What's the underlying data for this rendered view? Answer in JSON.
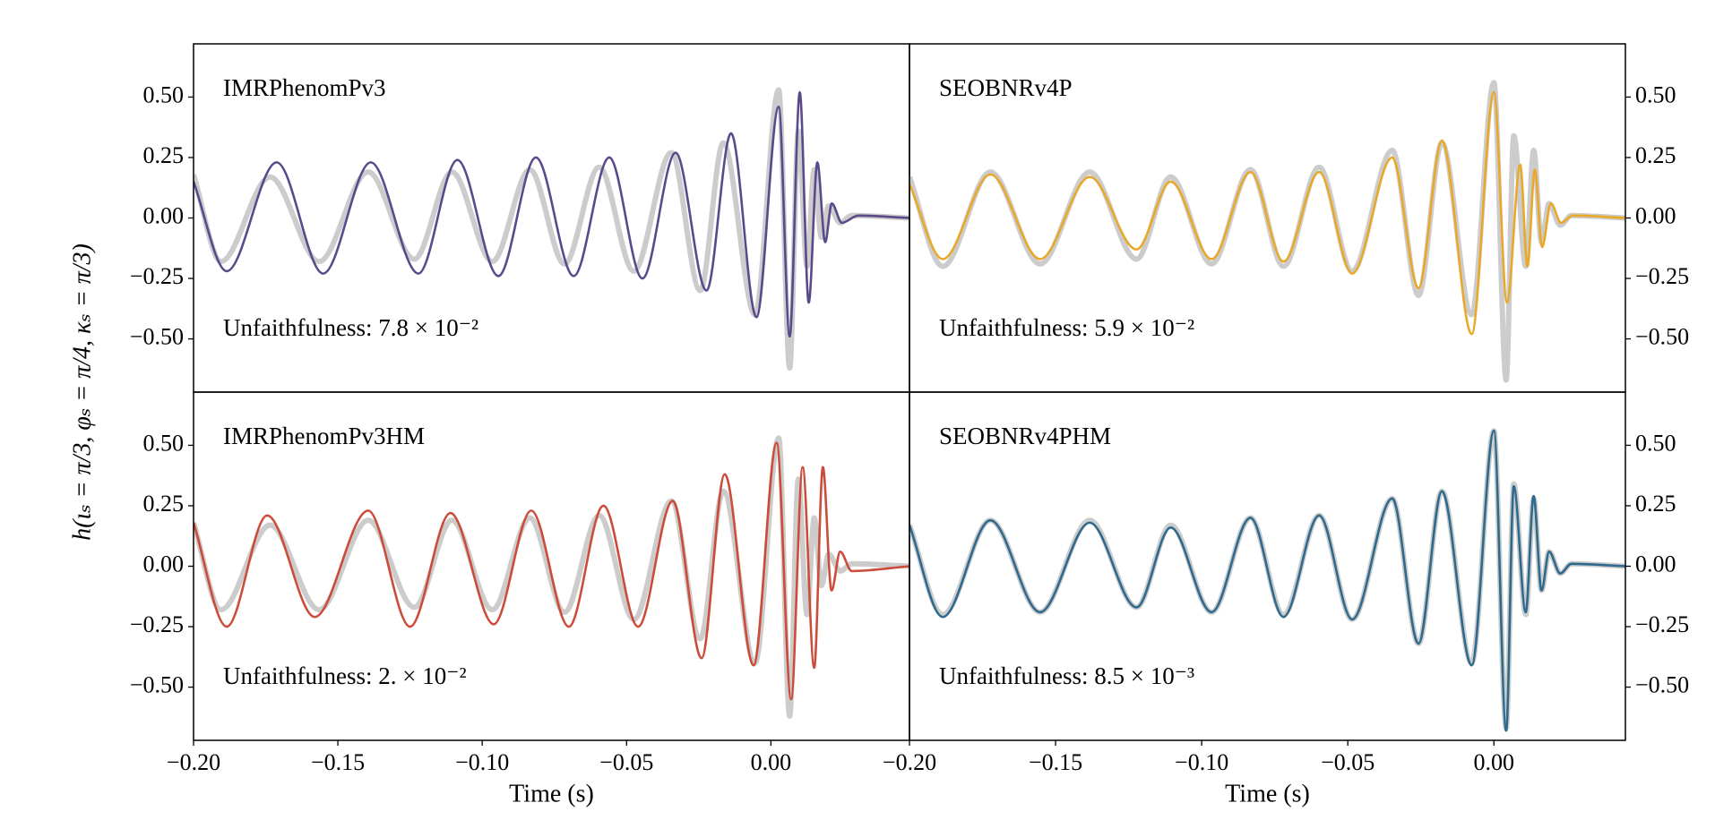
{
  "chart_data": [
    {
      "type": "line",
      "title": "IMRPhenomPv3",
      "annotation": "Unfaithfulness: 7.8 × 10⁻²",
      "ylabel": "h(ιₛ = π/3, φₛ = π/4, κₛ = π/3)",
      "xlim": [
        -0.2,
        0.048
      ],
      "ylim": [
        -0.72,
        0.72
      ],
      "yaxis_side": "left",
      "yticks": [
        {
          "value": -0.5,
          "label": "−0.50"
        },
        {
          "value": -0.25,
          "label": "−0.25"
        },
        {
          "value": 0,
          "label": "0.00"
        },
        {
          "value": 0.25,
          "label": "0.25"
        },
        {
          "value": 0.5,
          "label": "0.50"
        }
      ],
      "series": [
        {
          "color": "#cccccc",
          "x": [
            -0.2,
            -0.1905,
            -0.1735,
            -0.1565,
            -0.1395,
            -0.1235,
            -0.1105,
            -0.0965,
            -0.0835,
            -0.0715,
            -0.0595,
            -0.0475,
            -0.0345,
            -0.0245,
            -0.0165,
            -0.0055,
            0.0027,
            0.0065,
            0.0095,
            0.0125,
            0.015,
            0.0175,
            0.02,
            0.024,
            0.028,
            0.048
          ],
          "values": [
            0.18,
            -0.18,
            0.17,
            -0.18,
            0.19,
            -0.17,
            0.19,
            -0.18,
            0.2,
            -0.19,
            0.21,
            -0.22,
            0.27,
            -0.3,
            0.31,
            -0.4,
            0.53,
            -0.62,
            0.36,
            -0.2,
            0.2,
            -0.08,
            0.05,
            -0.02,
            0.01,
            0
          ]
        },
        {
          "color": "#5b4a8b",
          "x": [
            -0.2,
            -0.1885,
            -0.1712,
            -0.1551,
            -0.1386,
            -0.1221,
            -0.1086,
            -0.0944,
            -0.0814,
            -0.0683,
            -0.056,
            -0.0445,
            -0.033,
            -0.0223,
            -0.0138,
            -0.005,
            0.0027,
            0.0065,
            0.01,
            0.0131,
            0.0161,
            0.0188,
            0.0211,
            0.0246,
            0.0303,
            0.048
          ],
          "values": [
            0.15,
            -0.22,
            0.23,
            -0.23,
            0.23,
            -0.23,
            0.24,
            -0.24,
            0.25,
            -0.24,
            0.25,
            -0.25,
            0.27,
            -0.3,
            0.35,
            -0.41,
            0.46,
            -0.49,
            0.52,
            -0.35,
            0.23,
            -0.1,
            0.06,
            -0.02,
            0.01,
            0
          ]
        }
      ]
    },
    {
      "type": "line",
      "title": "SEOBNRv4P",
      "annotation": "Unfaithfulness: 5.9 × 10⁻²",
      "xlim": [
        -0.2,
        0.045
      ],
      "ylim": [
        -0.72,
        0.72
      ],
      "yaxis_side": "right",
      "yticks": [
        {
          "value": -0.5,
          "label": "−0.50"
        },
        {
          "value": -0.25,
          "label": "−0.25"
        },
        {
          "value": 0,
          "label": "0.00"
        },
        {
          "value": 0.25,
          "label": "0.25"
        },
        {
          "value": 0.5,
          "label": "0.50"
        }
      ],
      "series": [
        {
          "color": "#cccccc",
          "x": [
            -0.2,
            -0.1886,
            -0.1723,
            -0.1553,
            -0.1383,
            -0.1223,
            -0.1106,
            -0.0966,
            -0.0833,
            -0.072,
            -0.0598,
            -0.0485,
            -0.0348,
            -0.0258,
            -0.0178,
            -0.0076,
            0,
            0.0042,
            0.0068,
            0.0109,
            0.0136,
            0.0163,
            0.0189,
            0.0227,
            0.0265,
            0.045
          ],
          "values": [
            0.17,
            -0.2,
            0.19,
            -0.19,
            0.19,
            -0.17,
            0.17,
            -0.19,
            0.2,
            -0.2,
            0.21,
            -0.22,
            0.28,
            -0.32,
            0.31,
            -0.4,
            0.56,
            -0.67,
            0.34,
            -0.2,
            0.28,
            -0.1,
            0.06,
            -0.03,
            0.01,
            0
          ]
        },
        {
          "color": "#e8a92b",
          "x": [
            -0.2,
            -0.1886,
            -0.1723,
            -0.1553,
            -0.1383,
            -0.1223,
            -0.1106,
            -0.0966,
            -0.0833,
            -0.072,
            -0.0598,
            -0.0485,
            -0.0348,
            -0.0258,
            -0.0178,
            -0.0076,
            0,
            0.0045,
            0.009,
            0.0115,
            0.014,
            0.0165,
            0.0195,
            0.023,
            0.027,
            0.045
          ],
          "values": [
            0.14,
            -0.17,
            0.18,
            -0.17,
            0.17,
            -0.13,
            0.15,
            -0.17,
            0.19,
            -0.18,
            0.19,
            -0.23,
            0.25,
            -0.29,
            0.32,
            -0.48,
            0.52,
            -0.35,
            0.22,
            -0.2,
            0.2,
            -0.12,
            0.06,
            -0.02,
            0.01,
            0
          ]
        }
      ]
    },
    {
      "type": "line",
      "title": "IMRPhenomPv3HM",
      "annotation": "Unfaithfulness: 2. × 10⁻²",
      "xlabel": "Time (s)",
      "xlim": [
        -0.2,
        0.048
      ],
      "ylim": [
        -0.72,
        0.72
      ],
      "yaxis_side": "left",
      "xticks": [
        {
          "value": -0.2,
          "label": "−0.20"
        },
        {
          "value": -0.15,
          "label": "−0.15"
        },
        {
          "value": -0.1,
          "label": "−0.10"
        },
        {
          "value": -0.05,
          "label": "−0.05"
        },
        {
          "value": 0,
          "label": "0.00"
        }
      ],
      "yticks": [
        {
          "value": -0.5,
          "label": "−0.50"
        },
        {
          "value": -0.25,
          "label": "−0.25"
        },
        {
          "value": 0,
          "label": "0.00"
        },
        {
          "value": 0.25,
          "label": "0.25"
        },
        {
          "value": 0.5,
          "label": "0.50"
        }
      ],
      "series": [
        {
          "color": "#cccccc",
          "x": [
            -0.2,
            -0.1905,
            -0.1735,
            -0.1565,
            -0.1395,
            -0.1235,
            -0.1105,
            -0.0965,
            -0.0835,
            -0.0715,
            -0.0595,
            -0.0475,
            -0.0345,
            -0.0245,
            -0.0165,
            -0.0055,
            0.0027,
            0.0065,
            0.0095,
            0.0125,
            0.015,
            0.0175,
            0.02,
            0.024,
            0.028,
            0.048
          ],
          "values": [
            0.18,
            -0.18,
            0.17,
            -0.18,
            0.19,
            -0.17,
            0.19,
            -0.18,
            0.2,
            -0.19,
            0.21,
            -0.22,
            0.27,
            -0.3,
            0.31,
            -0.4,
            0.53,
            -0.62,
            0.36,
            -0.2,
            0.2,
            -0.08,
            0.05,
            -0.02,
            0.01,
            0
          ]
        },
        {
          "color": "#cc4c3b",
          "x": [
            -0.2,
            -0.1885,
            -0.1745,
            -0.158,
            -0.1395,
            -0.125,
            -0.111,
            -0.096,
            -0.083,
            -0.07,
            -0.058,
            -0.046,
            -0.034,
            -0.024,
            -0.016,
            -0.006,
            0.002,
            0.007,
            0.011,
            0.015,
            0.018,
            0.021,
            0.024,
            0.028,
            0.048
          ],
          "values": [
            0.18,
            -0.25,
            0.21,
            -0.21,
            0.23,
            -0.25,
            0.22,
            -0.24,
            0.23,
            -0.25,
            0.25,
            -0.25,
            0.27,
            -0.38,
            0.38,
            -0.41,
            0.51,
            -0.55,
            0.41,
            -0.42,
            0.41,
            -0.1,
            0.06,
            -0.02,
            0
          ]
        }
      ]
    },
    {
      "type": "line",
      "title": "SEOBNRv4PHM",
      "annotation": "Unfaithfulness: 8.5 × 10⁻³",
      "xlabel": "Time (s)",
      "xlim": [
        -0.2,
        0.045
      ],
      "ylim": [
        -0.72,
        0.72
      ],
      "yaxis_side": "right",
      "xticks": [
        {
          "value": -0.2,
          "label": "−0.20"
        },
        {
          "value": -0.15,
          "label": "−0.15"
        },
        {
          "value": -0.1,
          "label": "−0.10"
        },
        {
          "value": -0.05,
          "label": "−0.05"
        },
        {
          "value": 0,
          "label": "0.00"
        }
      ],
      "yticks": [
        {
          "value": -0.5,
          "label": "−0.50"
        },
        {
          "value": -0.25,
          "label": "−0.25"
        },
        {
          "value": 0,
          "label": "0.00"
        },
        {
          "value": 0.25,
          "label": "0.25"
        },
        {
          "value": 0.5,
          "label": "0.50"
        }
      ],
      "series": [
        {
          "color": "#cccccc",
          "x": [
            -0.2,
            -0.1886,
            -0.1723,
            -0.1553,
            -0.1383,
            -0.1223,
            -0.1106,
            -0.0966,
            -0.0833,
            -0.072,
            -0.0598,
            -0.0485,
            -0.0348,
            -0.0258,
            -0.0178,
            -0.0076,
            0,
            0.0042,
            0.0068,
            0.0109,
            0.0136,
            0.0163,
            0.0189,
            0.0227,
            0.0265,
            0.045
          ],
          "values": [
            0.17,
            -0.2,
            0.19,
            -0.19,
            0.19,
            -0.17,
            0.17,
            -0.19,
            0.2,
            -0.2,
            0.21,
            -0.22,
            0.28,
            -0.32,
            0.31,
            -0.4,
            0.56,
            -0.67,
            0.34,
            -0.2,
            0.28,
            -0.1,
            0.06,
            -0.03,
            0.01,
            0
          ]
        },
        {
          "color": "#2e6a8e",
          "x": [
            -0.2,
            -0.1886,
            -0.1723,
            -0.1553,
            -0.1383,
            -0.1223,
            -0.1106,
            -0.0966,
            -0.0833,
            -0.072,
            -0.0598,
            -0.0485,
            -0.0348,
            -0.0258,
            -0.0178,
            -0.0076,
            0,
            0.0042,
            0.0068,
            0.0109,
            0.0136,
            0.0163,
            0.0189,
            0.0227,
            0.0265,
            0.045
          ],
          "values": [
            0.17,
            -0.21,
            0.19,
            -0.19,
            0.18,
            -0.17,
            0.16,
            -0.19,
            0.2,
            -0.21,
            0.21,
            -0.22,
            0.28,
            -0.32,
            0.31,
            -0.41,
            0.56,
            -0.68,
            0.33,
            -0.19,
            0.29,
            -0.1,
            0.06,
            -0.03,
            0.01,
            0
          ]
        }
      ]
    }
  ]
}
